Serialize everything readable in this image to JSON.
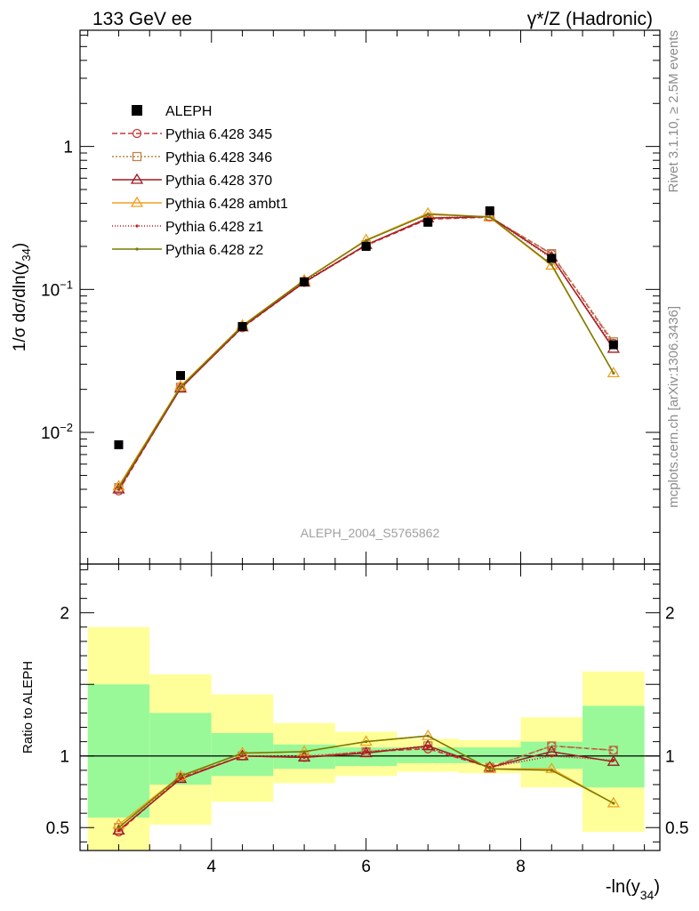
{
  "header": {
    "left_title": "133 GeV ee",
    "right_title": "γ*/Z (Hadronic)",
    "side_text_1": "Rivet 3.1.10, ≥ 2.5M events",
    "side_text_2": "mcplots.cern.ch [arXiv:1306.3436]",
    "analysis_id": "ALEPH_2004_S5765862"
  },
  "chart_data": [
    {
      "type": "scatter",
      "ylabel_parts": [
        "1/σ  dσ/dln(y",
        "34",
        ")"
      ],
      "yscale": "log",
      "ylim": [
        0.0012,
        6.5
      ],
      "y_tick_labels": [
        {
          "value": 1,
          "base": "1",
          "exp": ""
        },
        {
          "value": 0.1,
          "base": "10",
          "exp": "−1"
        },
        {
          "value": 0.01,
          "base": "10",
          "exp": "−2"
        }
      ],
      "legend_position": "top-left",
      "x": [
        2.8,
        3.6,
        4.4,
        5.2,
        6.0,
        6.8,
        7.6,
        8.4,
        9.2
      ],
      "data": {
        "name": "ALEPH",
        "values": [
          0.0082,
          0.025,
          0.055,
          0.113,
          0.2,
          0.295,
          0.355,
          0.165,
          0.041
        ],
        "color": "#000000"
      },
      "series": [
        {
          "name": "Pythia 6.428 345",
          "color": "#c8383a",
          "dash": "6,3",
          "marker": "circle",
          "values": [
            0.0039,
            0.0205,
            0.054,
            0.112,
            0.203,
            0.31,
            0.32,
            0.177,
            0.042
          ]
        },
        {
          "name": "Pythia 6.428 346",
          "color": "#b8864a",
          "dash": "2,2",
          "marker": "square",
          "values": [
            0.0041,
            0.0207,
            0.055,
            0.113,
            0.205,
            0.315,
            0.322,
            0.178,
            0.043
          ]
        },
        {
          "name": "Pythia 6.428 370",
          "color": "#9b1c24",
          "dash": "",
          "marker": "triangle",
          "values": [
            0.004,
            0.0203,
            0.0545,
            0.112,
            0.205,
            0.315,
            0.323,
            0.168,
            0.0385
          ]
        },
        {
          "name": "Pythia 6.428 ambt1",
          "color": "#f0a020",
          "dash": "",
          "marker": "triangle",
          "values": [
            0.0042,
            0.021,
            0.056,
            0.116,
            0.222,
            0.34,
            0.32,
            0.147,
            0.026
          ]
        },
        {
          "name": "Pythia 6.428 z1",
          "color": "#c81818",
          "dash": "1,2",
          "marker": "dot",
          "values": [
            0.004,
            0.0205,
            0.055,
            0.114,
            0.204,
            0.318,
            0.322,
            0.165,
            0.04
          ]
        },
        {
          "name": "Pythia 6.428 z2",
          "color": "#7a7a00",
          "dash": "",
          "marker": "dot",
          "values": [
            0.0041,
            0.0208,
            0.0555,
            0.116,
            0.22,
            0.335,
            0.322,
            0.149,
            0.026
          ]
        }
      ]
    },
    {
      "type": "line",
      "ylabel": "Ratio to ALEPH",
      "xlabel_parts": [
        "-ln(y",
        "34",
        ")"
      ],
      "xlim": [
        2.3,
        9.8
      ],
      "ylim": [
        0.34,
        2.34
      ],
      "x_tick_labels": [
        "4",
        "6",
        "8"
      ],
      "y_tick_labels": [
        "0.5",
        "1",
        "2"
      ],
      "bands": [
        {
          "x0": 2.4,
          "x1": 3.2,
          "green": [
            0.57,
            1.5
          ],
          "yellow": [
            0.34,
            1.9
          ]
        },
        {
          "x0": 3.2,
          "x1": 4.0,
          "green": [
            0.8,
            1.3
          ],
          "yellow": [
            0.52,
            1.57
          ]
        },
        {
          "x0": 4.0,
          "x1": 4.8,
          "green": [
            0.86,
            1.16
          ],
          "yellow": [
            0.68,
            1.43
          ]
        },
        {
          "x0": 4.8,
          "x1": 5.6,
          "green": [
            0.91,
            1.08
          ],
          "yellow": [
            0.81,
            1.23
          ]
        },
        {
          "x0": 5.6,
          "x1": 6.4,
          "green": [
            0.93,
            1.06
          ],
          "yellow": [
            0.86,
            1.17
          ]
        },
        {
          "x0": 6.4,
          "x1": 7.2,
          "green": [
            0.95,
            1.06
          ],
          "yellow": [
            0.89,
            1.12
          ]
        },
        {
          "x0": 7.2,
          "x1": 8.0,
          "green": [
            0.95,
            1.06
          ],
          "yellow": [
            0.88,
            1.11
          ]
        },
        {
          "x0": 8.0,
          "x1": 8.8,
          "green": [
            0.91,
            1.1
          ],
          "yellow": [
            0.78,
            1.27
          ]
        },
        {
          "x0": 8.8,
          "x1": 9.6,
          "green": [
            0.78,
            1.35
          ],
          "yellow": [
            0.47,
            1.59
          ]
        }
      ],
      "x": [
        2.8,
        3.6,
        4.4,
        5.2,
        6.0,
        6.8,
        7.6,
        8.4,
        9.2
      ],
      "series": [
        {
          "name": "Pythia 6.428 345",
          "color": "#c8383a",
          "dash": "6,3",
          "marker": "circle",
          "values": [
            0.47,
            0.85,
            1.0,
            0.99,
            1.03,
            1.05,
            0.92,
            1.07,
            1.04
          ]
        },
        {
          "name": "Pythia 6.428 346",
          "color": "#b8864a",
          "dash": "2,2",
          "marker": "square",
          "values": [
            0.5,
            0.85,
            1.0,
            1.0,
            1.03,
            1.07,
            0.92,
            1.07,
            1.04
          ]
        },
        {
          "name": "Pythia 6.428 370",
          "color": "#9b1c24",
          "dash": "",
          "marker": "triangle",
          "values": [
            0.48,
            0.84,
            1.0,
            0.99,
            1.02,
            1.07,
            0.92,
            1.03,
            0.96
          ]
        },
        {
          "name": "Pythia 6.428 ambt1",
          "color": "#f0a020",
          "dash": "",
          "marker": "triangle",
          "values": [
            0.52,
            0.86,
            1.02,
            1.03,
            1.1,
            1.14,
            0.91,
            0.91,
            0.67
          ]
        },
        {
          "name": "Pythia 6.428 z1",
          "color": "#c81818",
          "dash": "1,2",
          "marker": "dot",
          "values": [
            0.48,
            0.84,
            1.0,
            0.99,
            1.03,
            1.06,
            0.92,
            1.0,
            0.97
          ]
        },
        {
          "name": "Pythia 6.428 z2",
          "color": "#7a7a00",
          "dash": "",
          "marker": "dot",
          "values": [
            0.5,
            0.86,
            1.02,
            1.03,
            1.1,
            1.14,
            0.91,
            0.9,
            0.67
          ]
        }
      ]
    }
  ]
}
